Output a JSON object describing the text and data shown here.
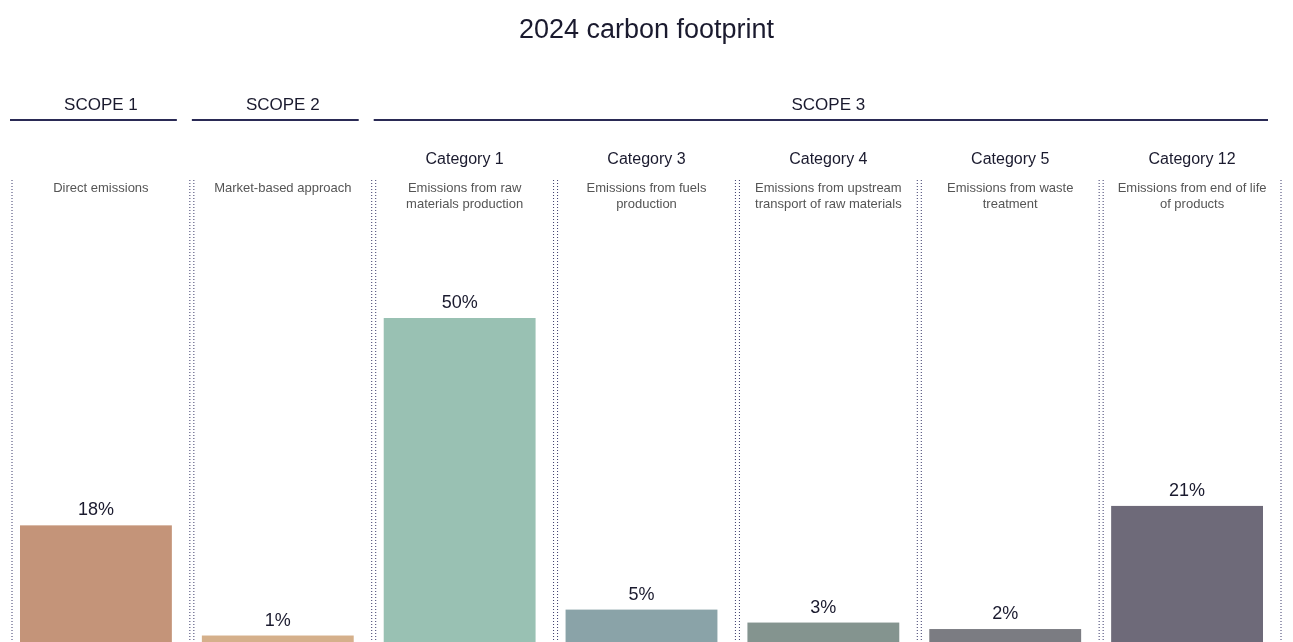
{
  "chart_data": {
    "type": "bar",
    "title": "2024 carbon footprint",
    "categories": [
      "Direct emissions",
      "Market-based approach",
      "Emissions from raw materials production",
      "Emissions from fuels production",
      "Emissions from upstream transport of raw materials",
      "Emissions from waste treatment",
      "Emissions from end of life of products"
    ],
    "values": [
      18,
      1,
      50,
      5,
      3,
      2,
      21
    ],
    "colors": [
      "#c49479",
      "#d5b08b",
      "#99c1b3",
      "#8aa3a8",
      "#84948f",
      "#7b7c82",
      "#6e6a79"
    ],
    "value_labels": [
      "18%",
      "1%",
      "50%",
      "5%",
      "3%",
      "2%",
      "21%"
    ],
    "annotations": [
      "SCOPE 1",
      "SCOPE 2",
      "SCOPE 3",
      "Category 1",
      "Category 3",
      "Category 4",
      "Category 5",
      "Category 12"
    ]
  }
}
